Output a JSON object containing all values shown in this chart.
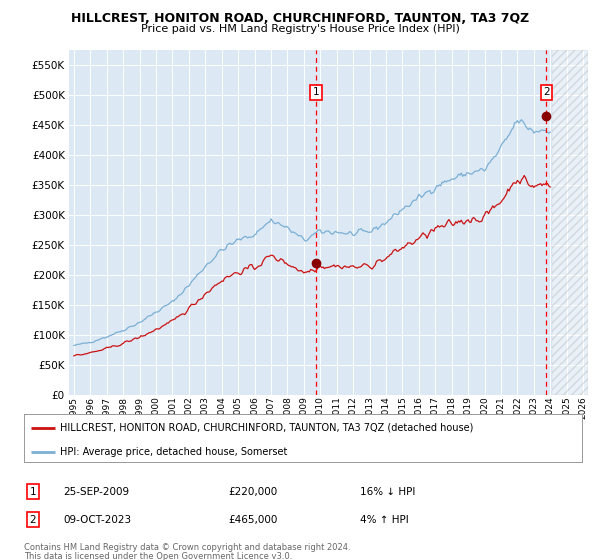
{
  "title": "HILLCREST, HONITON ROAD, CHURCHINFORD, TAUNTON, TA3 7QZ",
  "subtitle": "Price paid vs. HM Land Registry's House Price Index (HPI)",
  "hpi_color": "#7bafd4",
  "property_color": "#cc1111",
  "plot_bg_color": "#dce9f5",
  "sale1_date_label": "25-SEP-2009",
  "sale1_price": 220000,
  "sale1_year": 2009.73,
  "sale2_date_label": "09-OCT-2023",
  "sale2_price": 465000,
  "sale2_year": 2023.77,
  "legend_property": "HILLCREST, HONITON ROAD, CHURCHINFORD, TAUNTON, TA3 7QZ (detached house)",
  "legend_hpi": "HPI: Average price, detached house, Somerset",
  "footer1": "Contains HM Land Registry data © Crown copyright and database right 2024.",
  "footer2": "This data is licensed under the Open Government Licence v3.0.",
  "sale1_note": "16% ↓ HPI",
  "sale2_note": "4% ↑ HPI",
  "ylim": [
    0,
    575000
  ],
  "xlim": [
    1994.7,
    2026.3
  ],
  "yticks": [
    0,
    50000,
    100000,
    150000,
    200000,
    250000,
    300000,
    350000,
    400000,
    450000,
    500000,
    550000
  ],
  "xtick_years": [
    1995,
    1996,
    1997,
    1998,
    1999,
    2000,
    2001,
    2002,
    2003,
    2004,
    2005,
    2006,
    2007,
    2008,
    2009,
    2010,
    2011,
    2012,
    2013,
    2014,
    2015,
    2016,
    2017,
    2018,
    2019,
    2020,
    2021,
    2022,
    2023,
    2024,
    2025,
    2026
  ],
  "hatched_region_start": 2024.1,
  "hatched_region_end": 2026.3,
  "hpi_base": [
    1995.0,
    82000,
    1996.0,
    88000,
    1997.0,
    97000,
    1998.0,
    108000,
    1999.0,
    121000,
    2000.0,
    138000,
    2001.0,
    155000,
    2002.0,
    183000,
    2003.0,
    215000,
    2004.0,
    242000,
    2005.0,
    258000,
    2006.0,
    268000,
    2007.0,
    292000,
    2008.0,
    278000,
    2009.0,
    258000,
    2010.0,
    272000,
    2011.0,
    272000,
    2012.0,
    268000,
    2013.0,
    272000,
    2014.0,
    288000,
    2015.0,
    310000,
    2016.0,
    328000,
    2017.0,
    348000,
    2018.0,
    360000,
    2019.0,
    370000,
    2020.0,
    375000,
    2021.0,
    410000,
    2022.0,
    458000,
    2023.0,
    440000,
    2024.0,
    445000
  ],
  "prop_base": [
    1995.0,
    65000,
    1996.0,
    70000,
    1997.0,
    77000,
    1998.0,
    86000,
    1999.0,
    96000,
    2000.0,
    109000,
    2001.0,
    122000,
    2002.0,
    144000,
    2003.0,
    169000,
    2004.0,
    192000,
    2005.0,
    205000,
    2006.0,
    213000,
    2007.0,
    232000,
    2008.0,
    220000,
    2009.0,
    204000,
    2010.0,
    215000,
    2011.0,
    215000,
    2012.0,
    213000,
    2013.0,
    215000,
    2014.0,
    228000,
    2015.0,
    246000,
    2016.0,
    260000,
    2017.0,
    276000,
    2018.0,
    285000,
    2019.0,
    293000,
    2020.0,
    296000,
    2021.0,
    324000,
    2022.0,
    363000,
    2023.0,
    348000,
    2024.0,
    352000
  ]
}
